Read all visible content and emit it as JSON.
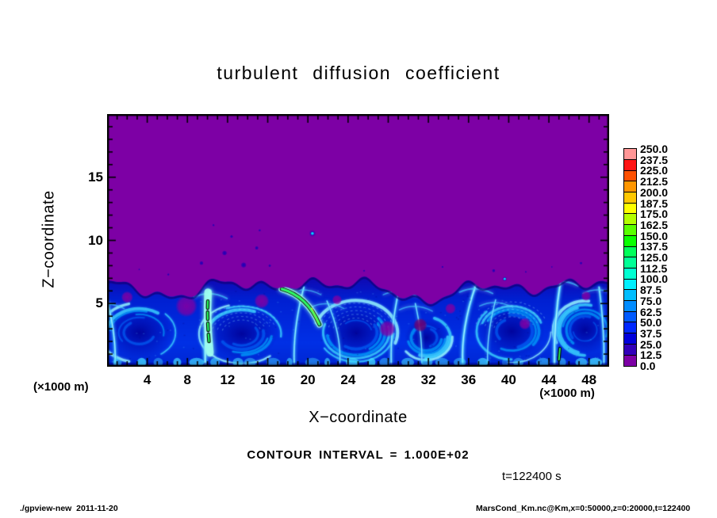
{
  "title": "turbulent diffusion coefficient",
  "axes": {
    "x_label": "X−coordinate",
    "y_label": "Z−coordinate",
    "x_units": "(×1000 m)",
    "y_units": "(×1000 m)"
  },
  "annotations": {
    "contour_interval": "CONTOUR INTERVAL = 1.000E+02",
    "time": "t=122400 s"
  },
  "footer": {
    "left": "./gpview-new  2011-11-20",
    "right": "MarsCond_Km.nc@Km,x=0:50000,z=0:20000,t=122400"
  },
  "chart_data": {
    "type": "heatmap",
    "title": "turbulent diffusion coefficient",
    "xlabel": "X-coordinate (×1000 m)",
    "ylabel": "Z-coordinate (×1000 m)",
    "xlim": [
      0,
      50
    ],
    "zlim": [
      0,
      20
    ],
    "x_major_ticks": [
      4,
      8,
      12,
      16,
      20,
      24,
      28,
      32,
      36,
      40,
      44,
      48
    ],
    "x_minor_step": 1,
    "z_major_ticks": [
      5,
      10,
      15
    ],
    "z_minor_step": 1,
    "contour_interval": 100.0,
    "time_seconds": 122400,
    "colorbar": {
      "tick_labels_top_to_bottom": [
        "250.0",
        "237.5",
        "225.0",
        "212.5",
        "200.0",
        "187.5",
        "175.0",
        "162.5",
        "150.0",
        "137.5",
        "125.0",
        "112.5",
        "100.0",
        "87.5",
        "75.0",
        "62.5",
        "50.0",
        "37.5",
        "25.0",
        "12.5",
        "0.0"
      ],
      "cell_colors_bottom_to_top": [
        "#7D00A5",
        "#3200B9",
        "#0000DC",
        "#0028FF",
        "#005AFF",
        "#008CFF",
        "#00BEFF",
        "#00F0FF",
        "#00FFD2",
        "#00FF96",
        "#00FF5A",
        "#0AFF00",
        "#5AFF00",
        "#B4FF00",
        "#FFFF00",
        "#FFC800",
        "#FF9600",
        "#FF5000",
        "#FF1414",
        "#FF9696"
      ]
    },
    "field_colors": {
      "background": "#7D00A5",
      "layer_deep": "#0020D2",
      "layer_dark_core": "#0000A0",
      "streak_cyan": "#41CFFF",
      "streak_bright": "#BEFAFF",
      "plume_green": "#25FF5F",
      "plume_yellow": "#CFFF3C",
      "contour_line": "#000000"
    },
    "field_summary": {
      "description": "Convective boundary layer: diffusion coefficient ~0 (purple) above z≈6.5 km; turbulent mixed layer below with blue/cyan vortices (values ~25–100) and plume maxima above 100 outlined by the 100-contour near x≈10 km and x≈18–21 km; small detached blue patches aloft near x≈9–16 km, z≈8–11 km",
      "boundary_layer_top": 6.5,
      "contour_outlined_maxima": [
        {
          "x": 10.0,
          "z_range": [
            2.0,
            5.6
          ]
        },
        {
          "x_range": [
            17.4,
            21.2
          ],
          "z_range": [
            3.3,
            6.1
          ]
        },
        {
          "x": 45.0,
          "z_range": [
            0.5,
            1.5
          ]
        }
      ]
    }
  }
}
